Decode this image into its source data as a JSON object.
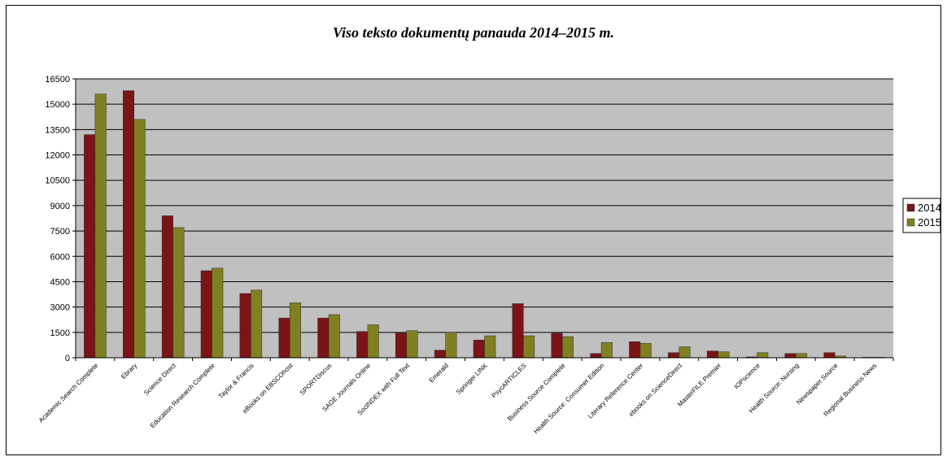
{
  "chart_data": {
    "type": "bar",
    "title": "Viso teksto dokumentų panauda 2014–2015 m.",
    "xlabel": "",
    "ylabel": "",
    "ylim": [
      0,
      16500
    ],
    "yticks": [
      0,
      1500,
      3000,
      4500,
      6000,
      7500,
      9000,
      10500,
      12000,
      13500,
      15000,
      16500
    ],
    "grid": true,
    "legend_position": "right",
    "categories": [
      "Academic Search Complete",
      "Ebrary",
      "Science Direct",
      "Education Research Complete",
      "Taylor & Francis",
      "eBooks on EBSCOhost",
      "SPORTDiscus",
      "SAGE Journals Online",
      "SocINDEX with Full Text",
      "Emerald",
      "Springer LINK",
      "PsycARTICLES",
      "Business Source Complete",
      "Health Source: Consumer Edition",
      "Literary Reference Center",
      "ebooks on ScienceDirect",
      "MasterFILE Premier",
      "IOPscience",
      "Health Source: Nursing",
      "Newspaper Source",
      "Regional Business News"
    ],
    "series": [
      {
        "name": "2014",
        "color": "#7b1416",
        "values": [
          13200,
          15800,
          8400,
          5150,
          3800,
          2350,
          2350,
          1550,
          1450,
          450,
          1050,
          3200,
          1450,
          250,
          950,
          300,
          400,
          50,
          250,
          300,
          30
        ]
      },
      {
        "name": "2015",
        "color": "#808022",
        "values": [
          15600,
          14100,
          7700,
          5300,
          4000,
          3250,
          2550,
          1950,
          1600,
          1500,
          1300,
          1300,
          1250,
          900,
          850,
          650,
          350,
          300,
          250,
          100,
          30
        ]
      }
    ],
    "colors": {
      "plot_background": "#c0c0c0",
      "gridline": "#000000"
    }
  }
}
